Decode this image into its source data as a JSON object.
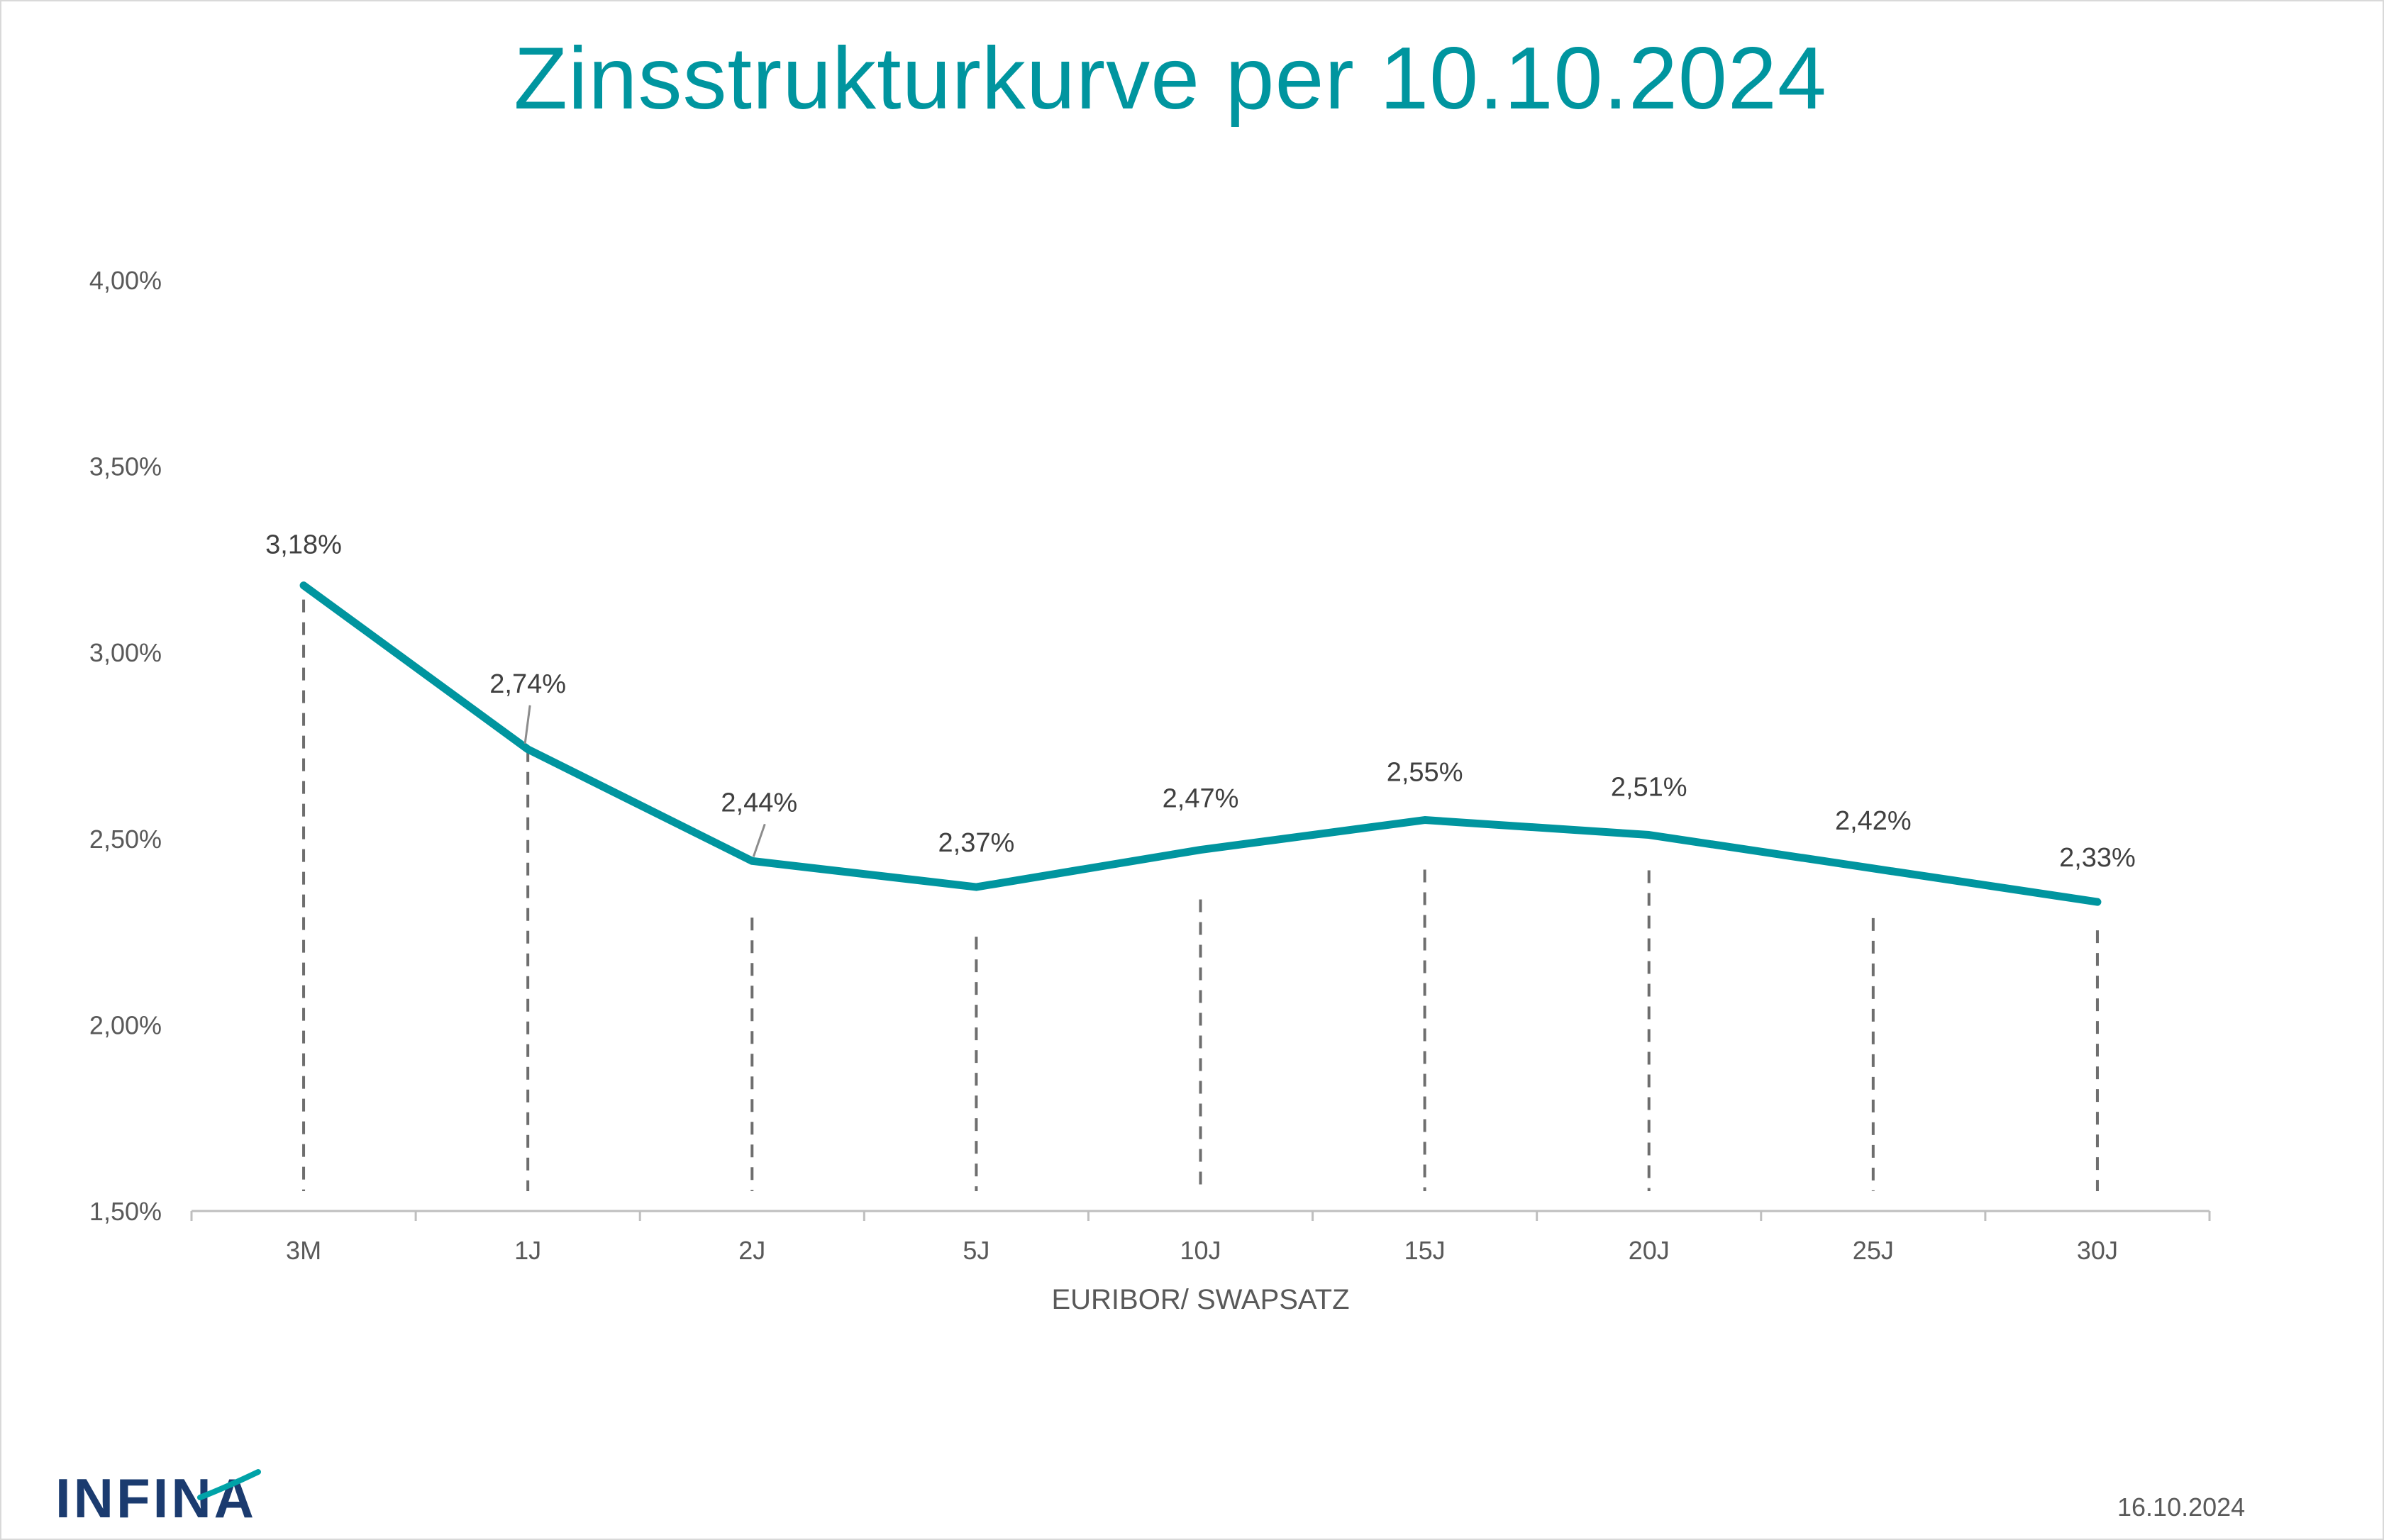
{
  "title": "Zinsstrukturkurve per 10.10.2024",
  "footer": {
    "logo_text": "INFINA",
    "date": "16.10.2024"
  },
  "colors": {
    "line": "#00959f",
    "title": "#00959f",
    "logo": "#1b3b6f",
    "dashes": "#6e6e6e",
    "axis": "#bfbfbf",
    "text": "#595959"
  },
  "chart_data": {
    "type": "line",
    "title": "Zinsstrukturkurve per 10.10.2024",
    "xlabel": "EURIBOR/ SWAPSATZ",
    "ylabel": "",
    "categories": [
      "3M",
      "1J",
      "2J",
      "5J",
      "10J",
      "15J",
      "20J",
      "25J",
      "30J"
    ],
    "series": [
      {
        "values": [
          3.18,
          2.74,
          2.44,
          2.37,
          2.47,
          2.55,
          2.51,
          2.42,
          2.33
        ],
        "labels": [
          "3,18%",
          "2,74%",
          "2,44%",
          "2,37%",
          "2,47%",
          "2,55%",
          "2,51%",
          "2,42%",
          "2,33%"
        ]
      }
    ],
    "ylim": [
      1.5,
      4.0
    ],
    "yticks": [
      1.5,
      2.0,
      2.5,
      3.0,
      3.5,
      4.0
    ],
    "ytick_labels": [
      "1,50%",
      "2,00%",
      "2,50%",
      "3,00%",
      "3,50%",
      "4,00%"
    ],
    "grid": false,
    "drop_lines": true,
    "legend": "none"
  }
}
